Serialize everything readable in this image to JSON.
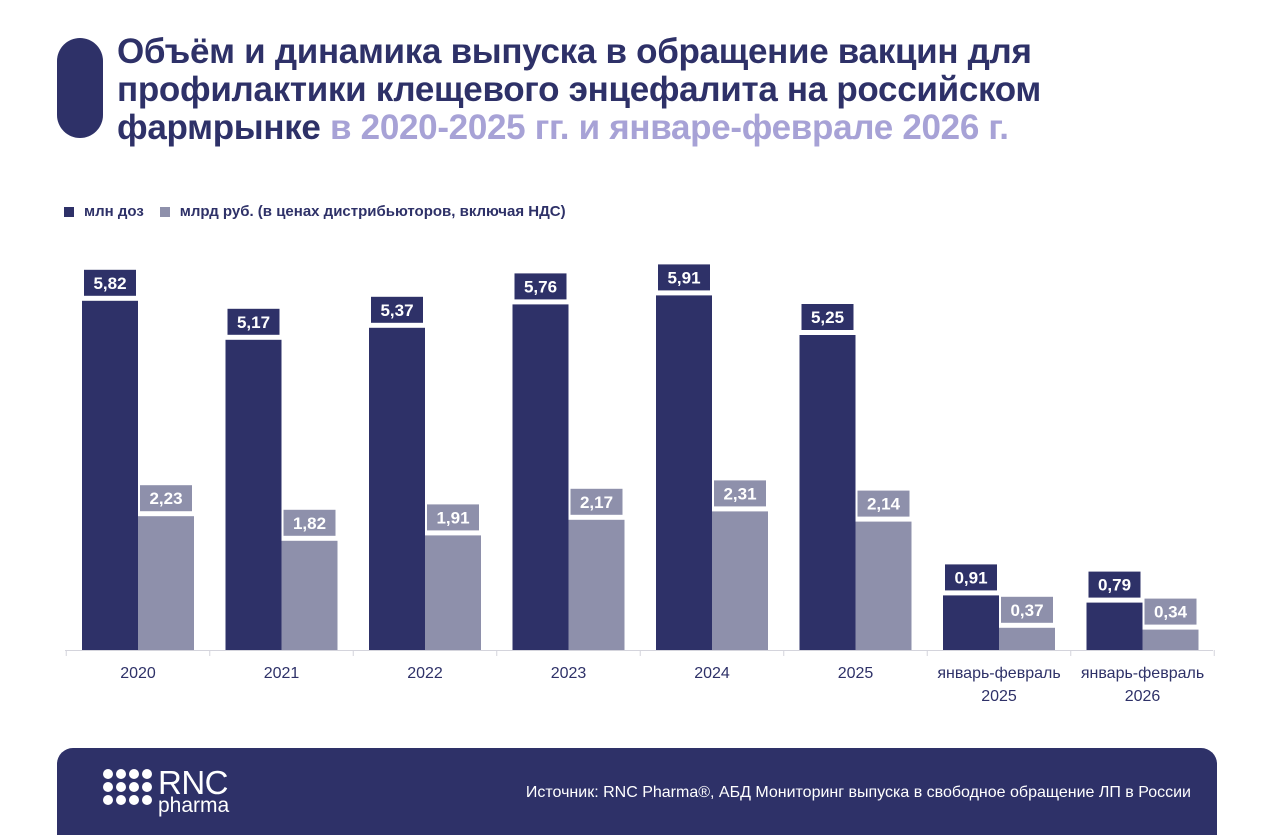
{
  "title": {
    "part1": "Объём и динамика выпуска в обращение вакцин для профилактики клещевого энцефалита на российском фармрынке",
    "part2": " в 2020-2025 гг. и январе-феврале 2026 г."
  },
  "colors": {
    "navy": "#2e3168",
    "gray": "#8e90ab",
    "title_highlight": "#a7a2d6"
  },
  "chart_data": {
    "type": "bar",
    "categories": [
      [
        "2020"
      ],
      [
        "2021"
      ],
      [
        "2022"
      ],
      [
        "2023"
      ],
      [
        "2024"
      ],
      [
        "2025"
      ],
      [
        "январь-февраль",
        "2025"
      ],
      [
        "январь-февраль",
        "2026"
      ]
    ],
    "series": [
      {
        "name": "млн доз",
        "color": "#2e3168",
        "values": [
          5.82,
          5.17,
          5.37,
          5.76,
          5.91,
          5.25,
          0.91,
          0.79
        ],
        "labels": [
          "5,82",
          "5,17",
          "5,37",
          "5,76",
          "5,91",
          "5,25",
          "0,91",
          "0,79"
        ]
      },
      {
        "name": "млрд руб. (в ценах дистрибьюторов, включая НДС)",
        "color": "#8e90ab",
        "values": [
          2.23,
          1.82,
          1.91,
          2.17,
          2.31,
          2.14,
          0.37,
          0.34
        ],
        "labels": [
          "2,23",
          "1,82",
          "1,91",
          "2,17",
          "2,31",
          "2,14",
          "0,37",
          "0,34"
        ]
      }
    ],
    "ylim": [
      0,
      6
    ],
    "grid": false,
    "legend_position": "top-left"
  },
  "footer": {
    "logo_big": "RNC",
    "logo_small": "pharma",
    "source": "Источник: RNC Pharma®, АБД Мониторинг выпуска в свободное обращение ЛП в России"
  }
}
